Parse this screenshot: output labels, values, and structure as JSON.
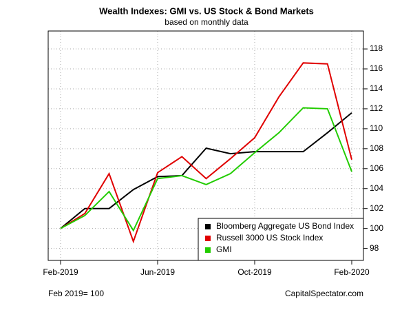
{
  "chart_data": {
    "type": "line",
    "title": "Wealth Indexes: GMI vs. US Stock & Bond Markets",
    "subtitle": "based on monthly data",
    "categories": [
      "Feb-2019",
      null,
      null,
      null,
      "Jun-2019",
      null,
      null,
      null,
      "Oct-2019",
      null,
      null,
      null,
      "Feb-2020"
    ],
    "series": [
      {
        "name": "Bloomberg Aggregate US Bond Index",
        "color": "#000000",
        "values": [
          100,
          102.0,
          102.0,
          103.9,
          105.2,
          105.3,
          108.05,
          107.5,
          107.7,
          107.7,
          107.7,
          109.6,
          111.6
        ]
      },
      {
        "name": "Russell 3000 US Stock Index",
        "color": "#e00000",
        "values": [
          100,
          101.5,
          105.5,
          98.7,
          105.6,
          107.2,
          105.0,
          107.0,
          109.1,
          113.2,
          116.6,
          116.5,
          106.9
        ]
      },
      {
        "name": "GMI",
        "color": "#22cc00",
        "values": [
          100,
          101.3,
          103.7,
          99.8,
          105.0,
          105.3,
          104.4,
          105.5,
          107.6,
          109.6,
          112.1,
          112.0,
          105.7
        ]
      }
    ],
    "ylim": [
      96.8,
      119.8
    ],
    "yticks": [
      98,
      100,
      102,
      104,
      106,
      108,
      110,
      112,
      114,
      116,
      118
    ],
    "grid": true,
    "legend": "bottom-right",
    "footnote_left": "Feb 2019= 100",
    "footnote_right": "CapitalSpectator.com"
  }
}
